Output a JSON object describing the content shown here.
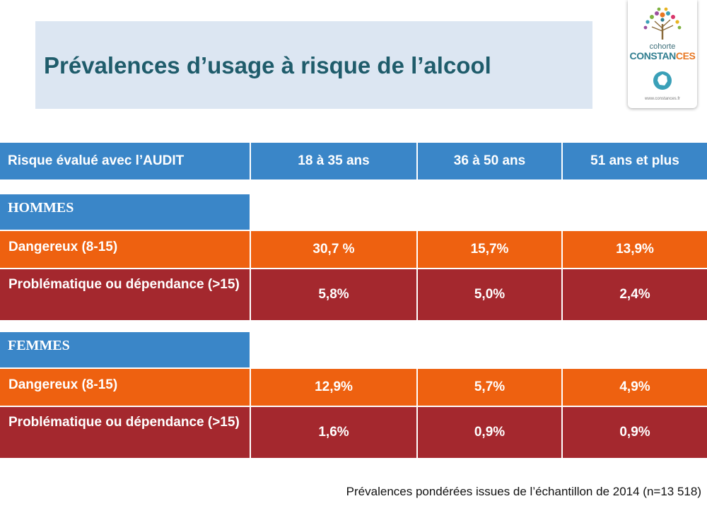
{
  "title": "Prévalences d’usage à risque de l’alcool",
  "logo": {
    "line1": "cohorte",
    "line2_part1": "CONSTAN",
    "line2_part2": "CES",
    "url": "www.constances.fr"
  },
  "table": {
    "header": [
      "Risque  évalué avec l’AUDIT",
      "18 à 35 ans",
      "36 à 50 ans",
      "51 ans et plus"
    ],
    "sections": [
      {
        "label": "HOMMES",
        "rows": [
          {
            "label": "Dangereux (8-15)",
            "values": [
              "30,7 %",
              "15,7%",
              "13,9%"
            ]
          },
          {
            "label": "Problématique ou dépendance (>15)",
            "values": [
              "5,8%",
              "5,0%",
              "2,4%"
            ]
          }
        ]
      },
      {
        "label": "FEMMES",
        "rows": [
          {
            "label": "Dangereux (8-15)",
            "values": [
              "12,9%",
              "5,7%",
              "4,9%"
            ]
          },
          {
            "label": "Problématique ou dépendance (>15)",
            "values": [
              "1,6%",
              "0,9%",
              "0,9%"
            ]
          }
        ]
      }
    ]
  },
  "footnote": "Prévalences pondérées issues de l’échantillon de 2014 (n=13 518)",
  "colors": {
    "header_blue": "#3a86c8",
    "dangereux_orange": "#ee6110",
    "problematique_red": "#a4282e",
    "title_bg": "#dce6f2",
    "title_text": "#1f5c6b"
  }
}
